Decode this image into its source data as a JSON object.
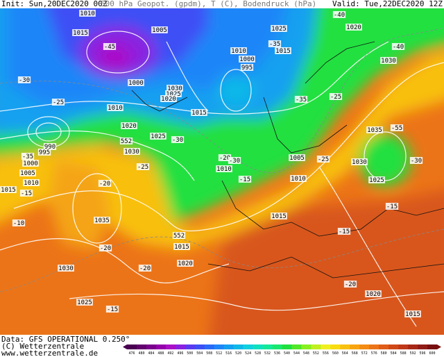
{
  "header": {
    "init": "Init: Sun,20DEC2020 00Z",
    "product": "500 hPa Geopot. (gpdm), T (C), Bodendruck (hPa)",
    "valid": "Valid: Tue,22DEC2020 12Z"
  },
  "footer": {
    "data": "Data: GFS OPERATIONAL 0.250°",
    "copyright": "(C) Wetterzentrale",
    "url": "www.wetterzentrale.de"
  },
  "colorbar": {
    "labels": [
      476,
      480,
      484,
      488,
      492,
      496,
      500,
      504,
      508,
      512,
      516,
      520,
      524,
      528,
      532,
      536,
      540,
      544,
      548,
      552,
      556,
      560,
      564,
      568,
      572,
      576,
      580,
      584,
      588,
      592,
      596,
      600
    ],
    "colors": [
      "#4a0050",
      "#62006e",
      "#7a008c",
      "#9400aa",
      "#aa10c8",
      "#8a20e0",
      "#5a3af0",
      "#3c50f5",
      "#2a6af8",
      "#1e86f8",
      "#14a0f0",
      "#10b8e8",
      "#10d0e0",
      "#10e0c0",
      "#14e89a",
      "#18e870",
      "#20e040",
      "#50e828",
      "#88f020",
      "#c0f020",
      "#f0f020",
      "#f8dc10",
      "#f8c010",
      "#f8a410",
      "#f48c14",
      "#ec7418",
      "#e05c18",
      "#d04818",
      "#c03818",
      "#a82818",
      "#901c18",
      "#781010"
    ]
  },
  "map_labels": [
    "1010",
    "1005",
    "1015",
    "-40",
    "1025",
    "1020",
    "-45",
    "-40",
    "1010",
    "1000",
    "995",
    "-35",
    "1015",
    "1030",
    "1000",
    "-30",
    "1030",
    "1025",
    "1020",
    "-35",
    "1010",
    "-25",
    "1015",
    "1020",
    "-25",
    "1025",
    "-30",
    "-35",
    "990",
    "995",
    "1000",
    "1005",
    "1010",
    "1015",
    "552",
    "1030",
    "-25",
    "-20",
    "-15",
    "-10",
    "1035",
    "-20",
    "-15",
    "1030",
    "1025",
    "552",
    "1015",
    "1020",
    "-30",
    "1010",
    "1005",
    "-25",
    "-30",
    "1010",
    "1015",
    "-20",
    "1035",
    "-55",
    "1030",
    "-15",
    "1025",
    "-20",
    "1020",
    "1015",
    "-15",
    "-20",
    "-15"
  ]
}
